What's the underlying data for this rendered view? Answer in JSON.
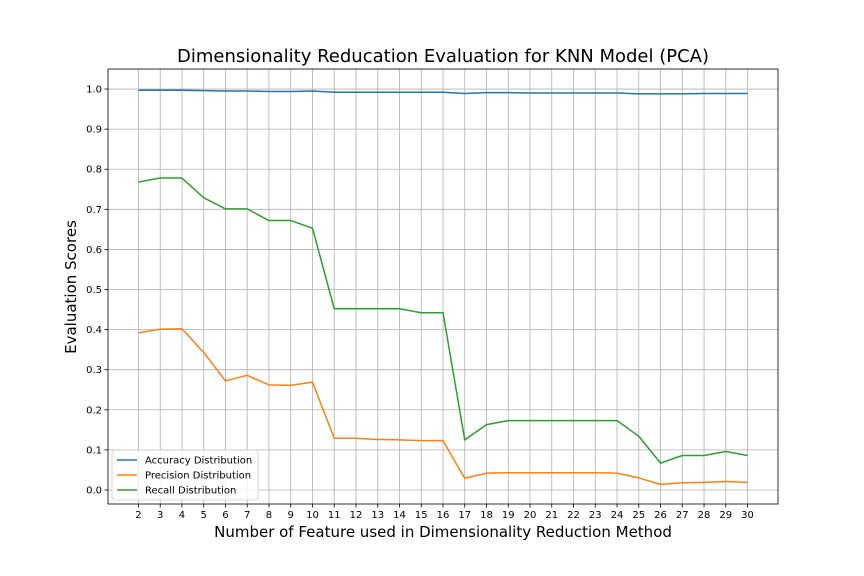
{
  "chart_data": {
    "type": "line",
    "title": "Dimensionality Reducation Evaluation for KNN Model (PCA)",
    "xlabel": "Number of Feature used in Dimensionality Reduction Method",
    "ylabel": "Evaluation Scores",
    "x": [
      2,
      3,
      4,
      5,
      6,
      7,
      8,
      9,
      10,
      11,
      12,
      13,
      14,
      15,
      16,
      17,
      18,
      19,
      20,
      21,
      22,
      23,
      24,
      25,
      26,
      27,
      28,
      29,
      30
    ],
    "xlim": [
      0.6,
      31.4
    ],
    "ylim": [
      -0.035,
      1.05
    ],
    "yticks": [
      0.0,
      0.1,
      0.2,
      0.3,
      0.4,
      0.5,
      0.6,
      0.7,
      0.8,
      0.9,
      1.0
    ],
    "ytick_labels": [
      "0.0",
      "0.1",
      "0.2",
      "0.3",
      "0.4",
      "0.5",
      "0.6",
      "0.7",
      "0.8",
      "0.9",
      "1.0"
    ],
    "grid": true,
    "legend_position": "lower-left",
    "series": [
      {
        "name": "Accuracy Distribution",
        "color": "#1f77b4",
        "values": [
          0.997,
          0.997,
          0.997,
          0.996,
          0.995,
          0.995,
          0.994,
          0.994,
          0.995,
          0.992,
          0.992,
          0.992,
          0.992,
          0.992,
          0.992,
          0.989,
          0.991,
          0.991,
          0.99,
          0.99,
          0.99,
          0.99,
          0.99,
          0.988,
          0.988,
          0.988,
          0.989,
          0.989,
          0.989
        ]
      },
      {
        "name": "Precision Distribution",
        "color": "#ff7f0e",
        "values": [
          0.392,
          0.401,
          0.402,
          0.343,
          0.272,
          0.286,
          0.262,
          0.261,
          0.269,
          0.129,
          0.129,
          0.126,
          0.125,
          0.123,
          0.123,
          0.029,
          0.042,
          0.043,
          0.043,
          0.043,
          0.043,
          0.043,
          0.042,
          0.03,
          0.014,
          0.018,
          0.019,
          0.021,
          0.019
        ]
      },
      {
        "name": "Recall Distribution",
        "color": "#2ca02c",
        "values": [
          0.768,
          0.778,
          0.778,
          0.729,
          0.701,
          0.701,
          0.672,
          0.672,
          0.653,
          0.452,
          0.452,
          0.452,
          0.452,
          0.442,
          0.442,
          0.125,
          0.163,
          0.173,
          0.173,
          0.173,
          0.173,
          0.173,
          0.173,
          0.134,
          0.067,
          0.086,
          0.086,
          0.096,
          0.086
        ]
      }
    ]
  }
}
